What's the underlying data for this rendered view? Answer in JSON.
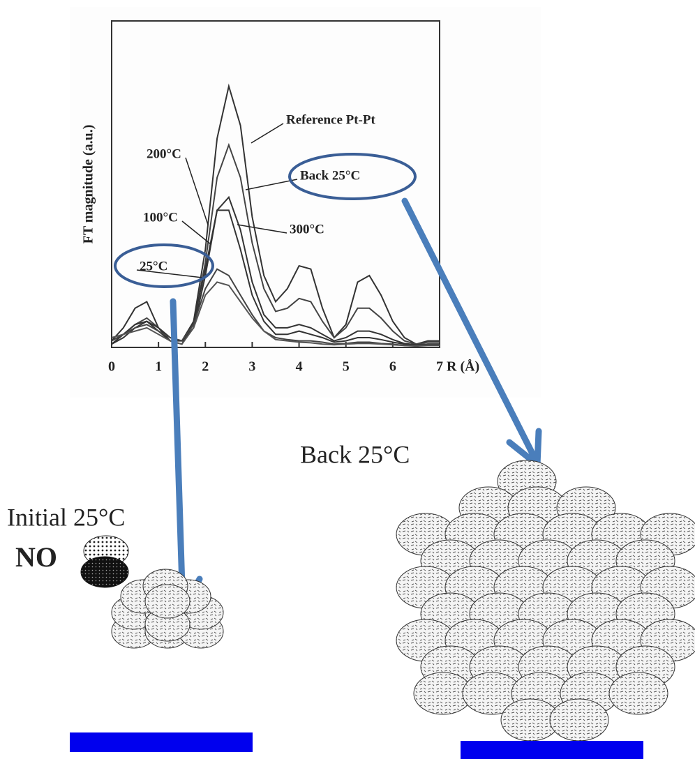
{
  "chart_data": {
    "type": "line",
    "ylabel": "FT magnitude (a.u.)",
    "xlabel": "R (Å)",
    "x": [
      0,
      0.25,
      0.5,
      0.75,
      1,
      1.25,
      1.5,
      1.75,
      2,
      2.25,
      2.5,
      2.75,
      3,
      3.25,
      3.5,
      3.75,
      4,
      4.25,
      4.5,
      4.75,
      5,
      5.25,
      5.5,
      5.75,
      6,
      6.25,
      6.5,
      6.75,
      7
    ],
    "xlim": [
      0,
      7
    ],
    "xticks": [
      0,
      1,
      2,
      3,
      4,
      5,
      6,
      7
    ],
    "ylim": [
      0,
      5
    ],
    "series": [
      {
        "name": "Reference Pt-Pt",
        "color": "#333333",
        "values": [
          0.1,
          0.3,
          0.6,
          0.7,
          0.3,
          0.1,
          0.05,
          0.4,
          1.5,
          3.2,
          4.0,
          3.4,
          2.0,
          1.1,
          0.7,
          0.9,
          1.25,
          1.2,
          0.6,
          0.15,
          0.35,
          1.0,
          1.1,
          0.8,
          0.4,
          0.15,
          0.05,
          0.1,
          0.1
        ]
      },
      {
        "name": "Back 25°C",
        "color": "#444444",
        "values": [
          0.1,
          0.2,
          0.35,
          0.45,
          0.3,
          0.15,
          0.1,
          0.35,
          1.3,
          2.6,
          3.1,
          2.6,
          1.6,
          0.9,
          0.55,
          0.6,
          0.75,
          0.7,
          0.4,
          0.15,
          0.3,
          0.6,
          0.6,
          0.45,
          0.25,
          0.1,
          0.05,
          0.08,
          0.08
        ]
      },
      {
        "name": "300°C",
        "color": "#333333",
        "values": [
          0.05,
          0.15,
          0.3,
          0.4,
          0.25,
          0.1,
          0.1,
          0.3,
          1.1,
          2.1,
          2.3,
          1.8,
          1.0,
          0.5,
          0.3,
          0.3,
          0.35,
          0.3,
          0.2,
          0.1,
          0.15,
          0.25,
          0.25,
          0.2,
          0.12,
          0.06,
          0.04,
          0.05,
          0.05
        ]
      },
      {
        "name": "200°C",
        "color": "#333333",
        "values": [
          0.05,
          0.2,
          0.35,
          0.4,
          0.3,
          0.15,
          0.1,
          0.4,
          1.2,
          2.1,
          2.1,
          1.5,
          0.8,
          0.4,
          0.2,
          0.2,
          0.25,
          0.2,
          0.15,
          0.08,
          0.1,
          0.15,
          0.15,
          0.12,
          0.08,
          0.05,
          0.03,
          0.05,
          0.05
        ]
      },
      {
        "name": "100°C",
        "color": "#444444",
        "values": [
          0.1,
          0.2,
          0.3,
          0.35,
          0.25,
          0.15,
          0.1,
          0.35,
          0.9,
          1.2,
          1.1,
          0.8,
          0.5,
          0.25,
          0.15,
          0.12,
          0.1,
          0.1,
          0.08,
          0.05,
          0.06,
          0.08,
          0.08,
          0.06,
          0.05,
          0.03,
          0.03,
          0.04,
          0.04
        ]
      },
      {
        "name": "25°C",
        "color": "#555555",
        "values": [
          0.15,
          0.2,
          0.25,
          0.3,
          0.2,
          0.1,
          0.05,
          0.3,
          0.8,
          1.0,
          0.95,
          0.7,
          0.45,
          0.25,
          0.12,
          0.1,
          0.08,
          0.07,
          0.05,
          0.04,
          0.05,
          0.06,
          0.06,
          0.05,
          0.04,
          0.03,
          0.02,
          0.03,
          0.03
        ]
      }
    ]
  },
  "illustration": {
    "initial_label": "Initial 25°C",
    "back_label": "Back 25°C",
    "molecule_label": "NO"
  }
}
